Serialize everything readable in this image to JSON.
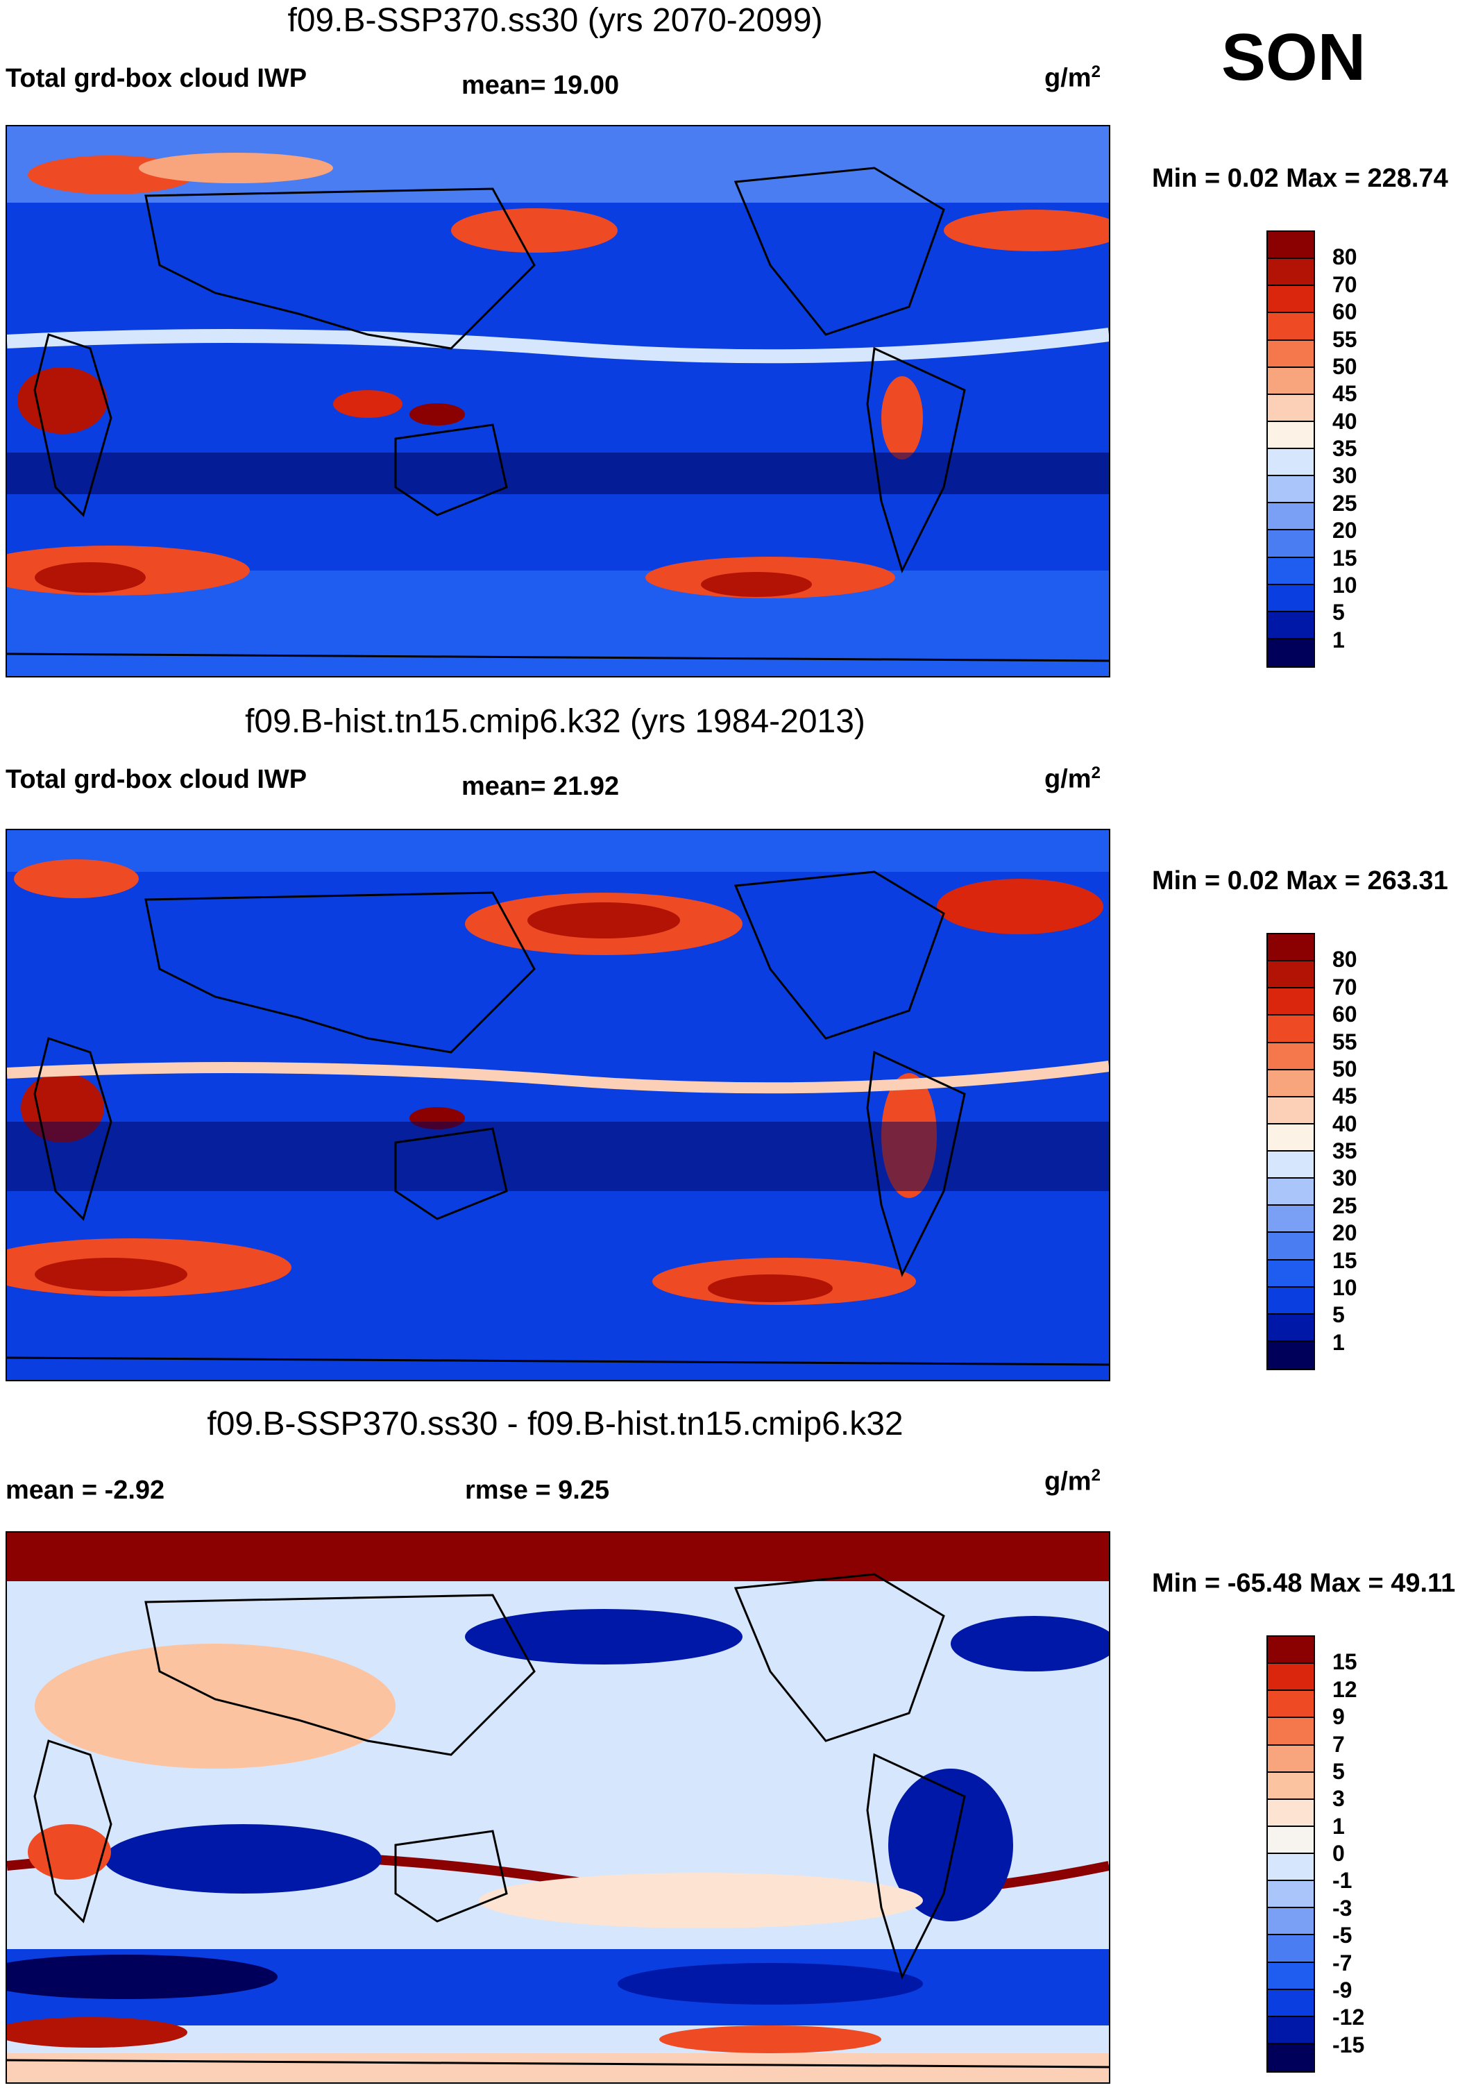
{
  "season": "SON",
  "colors": {
    "abs_scale": [
      "#00005a",
      "#0018a8",
      "#0a3ee0",
      "#1f5cf0",
      "#4a7df2",
      "#7aa0f5",
      "#a9c5fa",
      "#d6e6fd",
      "#fdf2e6",
      "#fbd0b6",
      "#f8a47c",
      "#f4784c",
      "#ee4a24",
      "#d9260c",
      "#b21304",
      "#8b0000"
    ],
    "diff_scale": [
      "#00005a",
      "#0018a8",
      "#0a3ee0",
      "#1f5cf0",
      "#4a7df2",
      "#7aa0f5",
      "#a9c5fa",
      "#d6e6fd",
      "#f7f4ef",
      "#fde3d1",
      "#fbc3a0",
      "#f8a47c",
      "#f4784c",
      "#ee4a24",
      "#d9260c",
      "#8b0000"
    ]
  },
  "panels": [
    {
      "title": "f09.B-SSP370.ss30 (yrs 2070-2099)",
      "left_label": "Total grd-box cloud IWP",
      "mean_label": "mean=  19.00",
      "unit_base": "g/m",
      "unit_exp": "2",
      "minmax": "Min =   0.02 Max = 228.74",
      "map_icon": "world-map-icon",
      "legend_ticks": [
        "80",
        "70",
        "60",
        "55",
        "50",
        "45",
        "40",
        "35",
        "30",
        "25",
        "20",
        "15",
        "10",
        "5",
        "1"
      ]
    },
    {
      "title": "f09.B-hist.tn15.cmip6.k32 (yrs 1984-2013)",
      "left_label": "Total grd-box cloud IWP",
      "mean_label": "mean=  21.92",
      "unit_base": "g/m",
      "unit_exp": "2",
      "minmax": "Min =   0.02 Max = 263.31",
      "map_icon": "world-map-icon",
      "legend_ticks": [
        "80",
        "70",
        "60",
        "55",
        "50",
        "45",
        "40",
        "35",
        "30",
        "25",
        "20",
        "15",
        "10",
        "5",
        "1"
      ]
    },
    {
      "title": "f09.B-SSP370.ss30 - f09.B-hist.tn15.cmip6.k32",
      "left_label": "mean =  -2.92",
      "mean_label": "rmse =    9.25",
      "unit_base": "g/m",
      "unit_exp": "2",
      "minmax": "Min = -65.48 Max =  49.11",
      "map_icon": "world-map-icon",
      "legend_ticks": [
        "15",
        "12",
        "9",
        "7",
        "5",
        "3",
        "1",
        "0",
        "-1",
        "-3",
        "-5",
        "-7",
        "-9",
        "-12",
        "-15"
      ]
    }
  ]
}
